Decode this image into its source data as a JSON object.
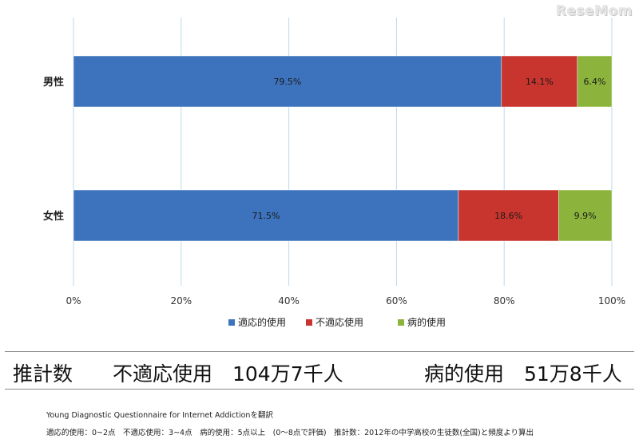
{
  "brand": "ReseMom",
  "chart_data": {
    "type": "bar",
    "orientation": "horizontal",
    "stacked": true,
    "percent": true,
    "categories": [
      "男性",
      "女性"
    ],
    "series": [
      {
        "name": "適応的使用",
        "values": [
          79.5,
          71.5
        ],
        "labels": [
          "79.5%",
          "71.5%"
        ],
        "color": "#3d73bd"
      },
      {
        "name": "不適応使用",
        "values": [
          14.1,
          18.6
        ],
        "labels": [
          "14.1%",
          "18.6%"
        ],
        "color": "#c8342e"
      },
      {
        "name": "病的使用",
        "values": [
          6.4,
          9.9
        ],
        "labels": [
          "6.4%",
          "9.9%"
        ],
        "color": "#8cb43c"
      }
    ],
    "xlim": [
      0,
      100
    ],
    "xticks": [
      "0%",
      "20%",
      "40%",
      "60%",
      "80%",
      "100%"
    ],
    "grid": true,
    "legend": "bottom"
  },
  "estimate": {
    "label": "推計数",
    "maladaptive": "不適応使用　104万7千人",
    "pathological": "病的使用　51万8千人"
  },
  "notes": {
    "line1": "Young Diagnostic Questionnaire for Internet Addictionを翻訳",
    "line2": "適応的使用：0~2点　不適応使用：3~4点　病的使用：5点以上　(0～8点で評価)　推計数：2012年の中学高校の生徒数(全国)と頻度より算出"
  }
}
